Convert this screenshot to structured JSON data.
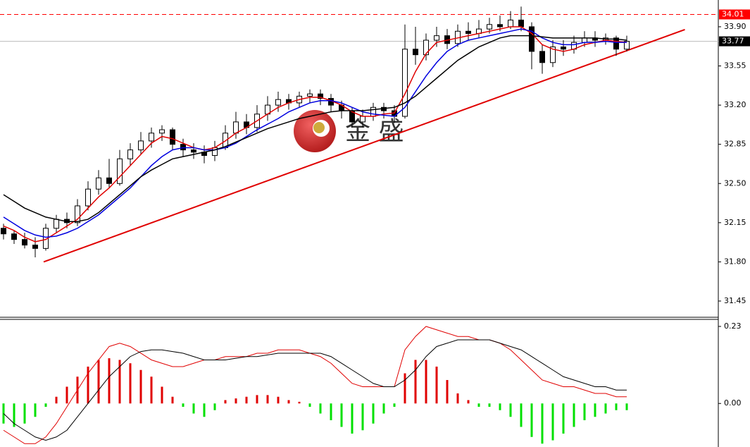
{
  "chart_data": {
    "type": "candlestick",
    "watermark": "金 盛",
    "ylim": [
      31.305,
      34.139
    ],
    "yticks": [
      {
        "value": 33.9,
        "label": "33.90"
      },
      33.55,
      {
        "value": 33.2,
        "label": "33.20"
      },
      32.85,
      {
        "value": 32.5,
        "label": "32.50"
      },
      32.15,
      {
        "value": 31.8,
        "label": "31.80"
      },
      31.45
    ],
    "up_color": "#ffffff",
    "down_color": "#000000",
    "ohlc": [
      [
        32.1,
        32.14,
        32.0,
        32.05
      ],
      [
        32.05,
        32.08,
        31.96,
        32.0
      ],
      [
        32.0,
        32.06,
        31.92,
        31.95
      ],
      [
        31.95,
        32.02,
        31.84,
        31.92
      ],
      [
        31.92,
        32.14,
        31.9,
        32.1
      ],
      [
        32.1,
        32.22,
        32.06,
        32.18
      ],
      [
        32.18,
        32.24,
        32.1,
        32.15
      ],
      [
        32.15,
        32.36,
        32.12,
        32.3
      ],
      [
        32.3,
        32.52,
        32.26,
        32.45
      ],
      [
        32.45,
        32.62,
        32.4,
        32.55
      ],
      [
        32.55,
        32.72,
        32.46,
        32.5
      ],
      [
        32.5,
        32.8,
        32.48,
        32.72
      ],
      [
        32.72,
        32.86,
        32.66,
        32.8
      ],
      [
        32.8,
        32.96,
        32.76,
        32.88
      ],
      [
        32.88,
        33.0,
        32.82,
        32.95
      ],
      [
        32.95,
        33.02,
        32.88,
        32.98
      ],
      [
        32.98,
        33.0,
        32.8,
        32.85
      ],
      [
        32.85,
        32.9,
        32.74,
        32.8
      ],
      [
        32.8,
        32.86,
        32.72,
        32.78
      ],
      [
        32.78,
        32.84,
        32.68,
        32.75
      ],
      [
        32.75,
        32.88,
        32.7,
        32.82
      ],
      [
        32.82,
        33.02,
        32.8,
        32.95
      ],
      [
        32.95,
        33.14,
        32.9,
        33.05
      ],
      [
        33.05,
        33.12,
        32.94,
        33.0
      ],
      [
        33.0,
        33.2,
        32.96,
        33.12
      ],
      [
        33.12,
        33.28,
        33.06,
        33.2
      ],
      [
        33.2,
        33.32,
        33.14,
        33.25
      ],
      [
        33.25,
        33.3,
        33.16,
        33.22
      ],
      [
        33.22,
        33.32,
        33.18,
        33.28
      ],
      [
        33.28,
        33.34,
        33.22,
        33.3
      ],
      [
        33.3,
        33.34,
        33.2,
        33.26
      ],
      [
        33.26,
        33.3,
        33.14,
        33.2
      ],
      [
        33.2,
        33.24,
        33.08,
        33.15
      ],
      [
        33.15,
        33.18,
        33.0,
        33.05
      ],
      [
        33.05,
        33.16,
        33.0,
        33.1
      ],
      [
        33.1,
        33.22,
        33.06,
        33.18
      ],
      [
        33.18,
        33.22,
        33.08,
        33.15
      ],
      [
        33.15,
        33.2,
        33.04,
        33.1
      ],
      [
        33.1,
        33.92,
        33.08,
        33.7
      ],
      [
        33.7,
        33.9,
        33.56,
        33.65
      ],
      [
        33.65,
        33.84,
        33.6,
        33.78
      ],
      [
        33.78,
        33.9,
        33.72,
        33.82
      ],
      [
        33.82,
        33.88,
        33.7,
        33.75
      ],
      [
        33.75,
        33.92,
        33.72,
        33.86
      ],
      [
        33.86,
        33.94,
        33.78,
        33.84
      ],
      [
        33.84,
        33.96,
        33.8,
        33.88
      ],
      [
        33.88,
        33.98,
        33.84,
        33.92
      ],
      [
        33.92,
        34.0,
        33.86,
        33.9
      ],
      [
        33.9,
        34.04,
        33.88,
        33.96
      ],
      [
        33.96,
        34.08,
        33.86,
        33.9
      ],
      [
        33.9,
        33.94,
        33.52,
        33.68
      ],
      [
        33.68,
        33.74,
        33.48,
        33.58
      ],
      [
        33.58,
        33.78,
        33.54,
        33.72
      ],
      [
        33.72,
        33.78,
        33.64,
        33.7
      ],
      [
        33.7,
        33.82,
        33.66,
        33.76
      ],
      [
        33.76,
        33.86,
        33.72,
        33.8
      ],
      [
        33.8,
        33.86,
        33.72,
        33.78
      ],
      [
        33.78,
        33.84,
        33.74,
        33.8
      ],
      [
        33.8,
        33.82,
        33.64,
        33.7
      ],
      [
        33.7,
        33.82,
        33.68,
        33.77
      ]
    ],
    "moving_averages": [
      {
        "color": "#e00000",
        "values": [
          32.12,
          32.08,
          32.02,
          31.98,
          32.0,
          32.06,
          32.12,
          32.18,
          32.28,
          32.38,
          32.46,
          32.56,
          32.66,
          32.76,
          32.86,
          32.92,
          32.9,
          32.86,
          32.82,
          32.8,
          32.82,
          32.88,
          32.95,
          33.0,
          33.06,
          33.12,
          33.18,
          33.22,
          33.25,
          33.27,
          33.27,
          33.24,
          33.2,
          33.14,
          33.1,
          33.1,
          33.12,
          33.13,
          33.3,
          33.5,
          33.66,
          33.76,
          33.78,
          33.8,
          33.82,
          33.84,
          33.86,
          33.88,
          33.9,
          33.9,
          33.84,
          33.74,
          33.7,
          33.68,
          33.7,
          33.74,
          33.76,
          33.78,
          33.77,
          33.76
        ]
      },
      {
        "color": "#0000e0",
        "values": [
          32.2,
          32.14,
          32.08,
          32.04,
          32.02,
          32.03,
          32.06,
          32.1,
          32.16,
          32.22,
          32.3,
          32.38,
          32.46,
          32.56,
          32.66,
          32.74,
          32.8,
          32.82,
          32.82,
          32.8,
          32.8,
          32.82,
          32.86,
          32.92,
          32.98,
          33.03,
          33.08,
          33.14,
          33.18,
          33.22,
          33.24,
          33.24,
          33.22,
          33.18,
          33.14,
          33.12,
          33.11,
          33.1,
          33.18,
          33.32,
          33.46,
          33.58,
          33.68,
          33.74,
          33.78,
          33.8,
          33.82,
          33.84,
          33.86,
          33.88,
          33.86,
          33.8,
          33.76,
          33.74,
          33.74,
          33.76,
          33.76,
          33.77,
          33.76,
          33.76
        ]
      },
      {
        "color": "#000000",
        "values": [
          32.4,
          32.34,
          32.28,
          32.24,
          32.2,
          32.18,
          32.16,
          32.16,
          32.18,
          32.24,
          32.32,
          32.4,
          32.48,
          32.56,
          32.62,
          32.67,
          32.72,
          32.74,
          32.76,
          32.78,
          32.8,
          32.83,
          32.87,
          32.91,
          32.95,
          32.99,
          33.02,
          33.05,
          33.08,
          33.1,
          33.12,
          33.14,
          33.15,
          33.15,
          33.15,
          33.16,
          33.17,
          33.18,
          33.22,
          33.28,
          33.36,
          33.44,
          33.52,
          33.6,
          33.66,
          33.72,
          33.76,
          33.8,
          33.82,
          33.82,
          33.82,
          33.81,
          33.8,
          33.8,
          33.8,
          33.8,
          33.8,
          33.79,
          33.79,
          33.78
        ]
      }
    ],
    "price_levels": [
      {
        "value": 34.01,
        "color": "#ff0000"
      },
      {
        "value": 33.77,
        "color": "#000000"
      }
    ],
    "trendline": {
      "color": "#e00000",
      "x": [
        3.8,
        64.5
      ],
      "y": [
        31.8,
        33.875
      ]
    },
    "macd": {
      "ylim": [
        -0.13,
        0.251
      ],
      "yticks": [
        {
          "value": 0,
          "label": "0.00"
        },
        0.23
      ],
      "positive_color": "#e00000",
      "negative_color": "#00e000",
      "histogram": [
        -0.06,
        -0.07,
        -0.06,
        -0.04,
        -0.01,
        0.02,
        0.05,
        0.08,
        0.11,
        0.13,
        0.135,
        0.13,
        0.12,
        0.1,
        0.08,
        0.05,
        0.02,
        -0.01,
        -0.03,
        -0.04,
        -0.02,
        0.01,
        0.015,
        0.02,
        0.025,
        0.025,
        0.02,
        0.01,
        0.005,
        -0.01,
        -0.03,
        -0.05,
        -0.07,
        -0.09,
        -0.08,
        -0.06,
        -0.03,
        -0.01,
        0.09,
        0.13,
        0.13,
        0.11,
        0.07,
        0.03,
        0.01,
        -0.01,
        -0.01,
        -0.02,
        -0.04,
        -0.07,
        -0.1,
        -0.12,
        -0.11,
        -0.09,
        -0.07,
        -0.05,
        -0.04,
        -0.03,
        -0.02,
        -0.02
      ],
      "lines": [
        {
          "color": "#e00000",
          "values": [
            -0.08,
            -0.1,
            -0.12,
            -0.12,
            -0.1,
            -0.06,
            -0.01,
            0.04,
            0.09,
            0.13,
            0.17,
            0.18,
            0.17,
            0.15,
            0.13,
            0.12,
            0.11,
            0.11,
            0.12,
            0.13,
            0.13,
            0.14,
            0.14,
            0.14,
            0.15,
            0.15,
            0.16,
            0.16,
            0.16,
            0.15,
            0.14,
            0.12,
            0.09,
            0.06,
            0.05,
            0.05,
            0.05,
            0.05,
            0.16,
            0.2,
            0.23,
            0.22,
            0.21,
            0.2,
            0.2,
            0.19,
            0.19,
            0.18,
            0.16,
            0.13,
            0.1,
            0.07,
            0.06,
            0.05,
            0.05,
            0.04,
            0.03,
            0.03,
            0.02,
            0.02
          ]
        },
        {
          "color": "#000000",
          "values": [
            -0.03,
            -0.06,
            -0.08,
            -0.1,
            -0.11,
            -0.1,
            -0.08,
            -0.04,
            0.0,
            0.04,
            0.08,
            0.11,
            0.14,
            0.155,
            0.16,
            0.16,
            0.155,
            0.15,
            0.14,
            0.13,
            0.13,
            0.13,
            0.135,
            0.14,
            0.14,
            0.145,
            0.15,
            0.15,
            0.15,
            0.15,
            0.15,
            0.14,
            0.12,
            0.1,
            0.08,
            0.06,
            0.05,
            0.05,
            0.07,
            0.1,
            0.14,
            0.17,
            0.18,
            0.19,
            0.19,
            0.19,
            0.19,
            0.18,
            0.17,
            0.16,
            0.14,
            0.12,
            0.1,
            0.08,
            0.07,
            0.06,
            0.05,
            0.05,
            0.04,
            0.04
          ]
        }
      ]
    }
  }
}
